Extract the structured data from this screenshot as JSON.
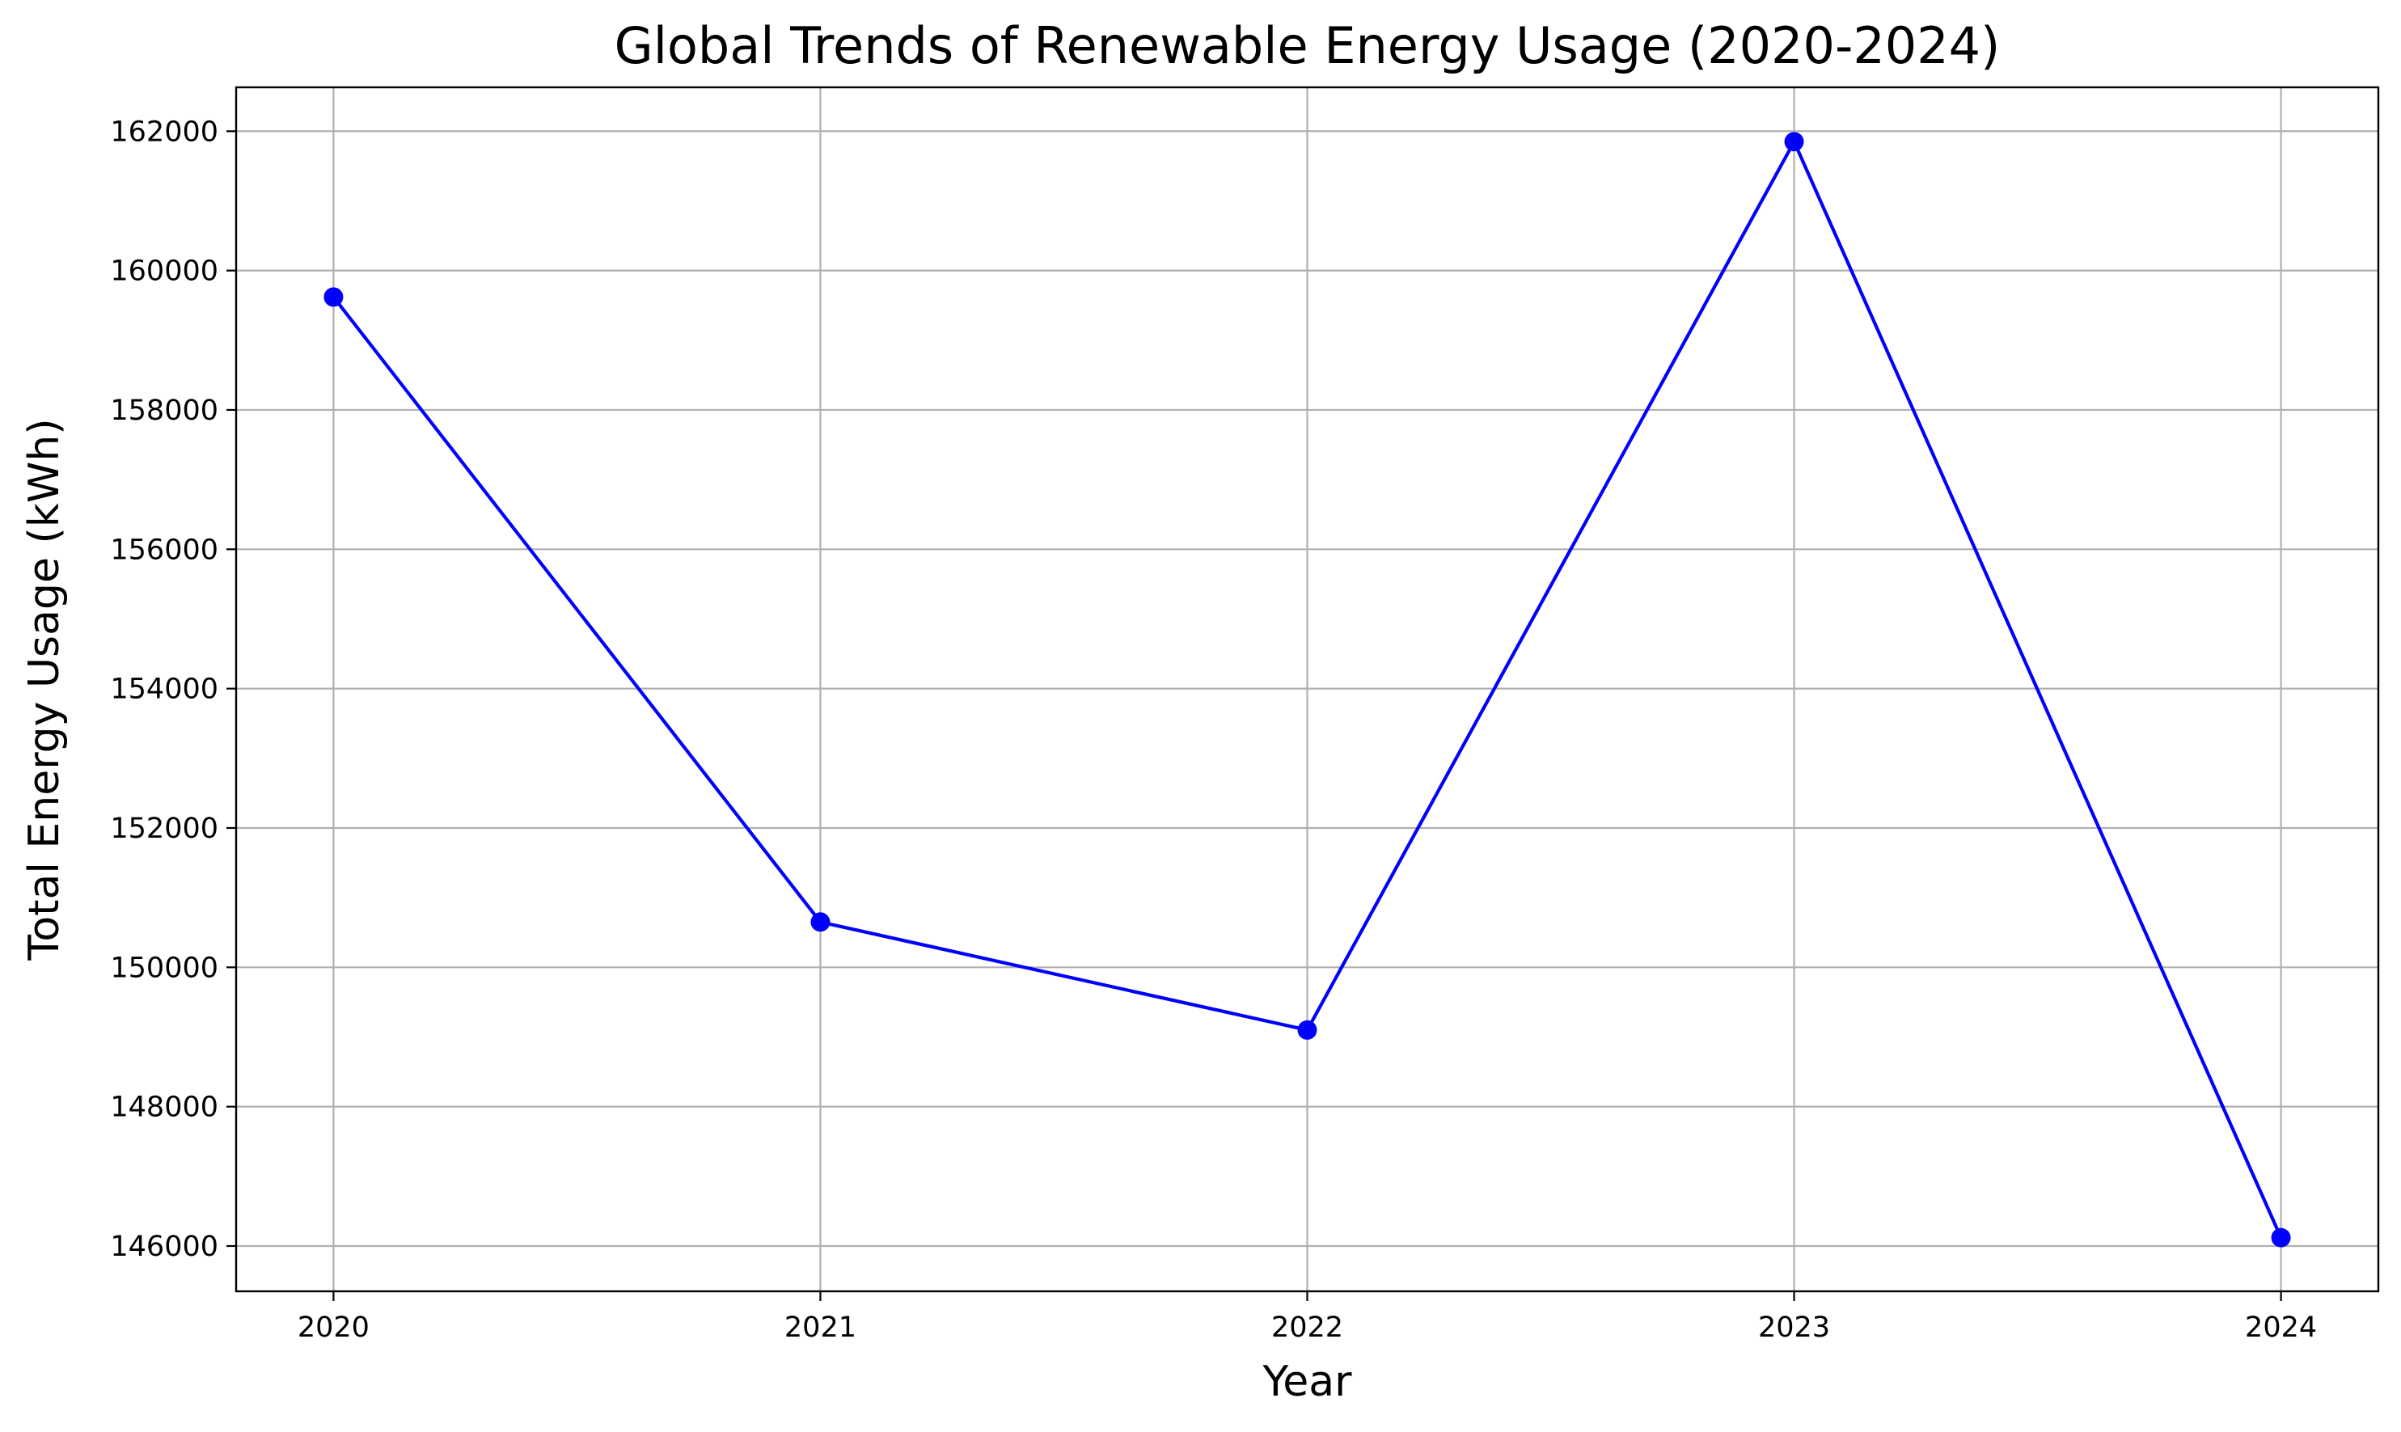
{
  "chart_data": {
    "type": "line",
    "title": "Global Trends of Renewable Energy Usage (2020-2024)",
    "xlabel": "Year",
    "ylabel": "Total Energy Usage (kWh)",
    "categories": [
      "2020",
      "2021",
      "2022",
      "2023",
      "2024"
    ],
    "series": [
      {
        "values": [
          159620,
          150650,
          149100,
          161850,
          146120
        ],
        "color": "#0000ff",
        "marker": "circle"
      }
    ],
    "xlim": [
      2019.8,
      2024.2
    ],
    "ylim": [
      145350,
      162630
    ],
    "yticks": [
      146000,
      148000,
      150000,
      152000,
      154000,
      156000,
      158000,
      160000,
      162000
    ],
    "ytick_labels": [
      "146000",
      "148000",
      "150000",
      "152000",
      "154000",
      "156000",
      "158000",
      "160000",
      "162000"
    ],
    "grid": true,
    "legend": "none"
  }
}
